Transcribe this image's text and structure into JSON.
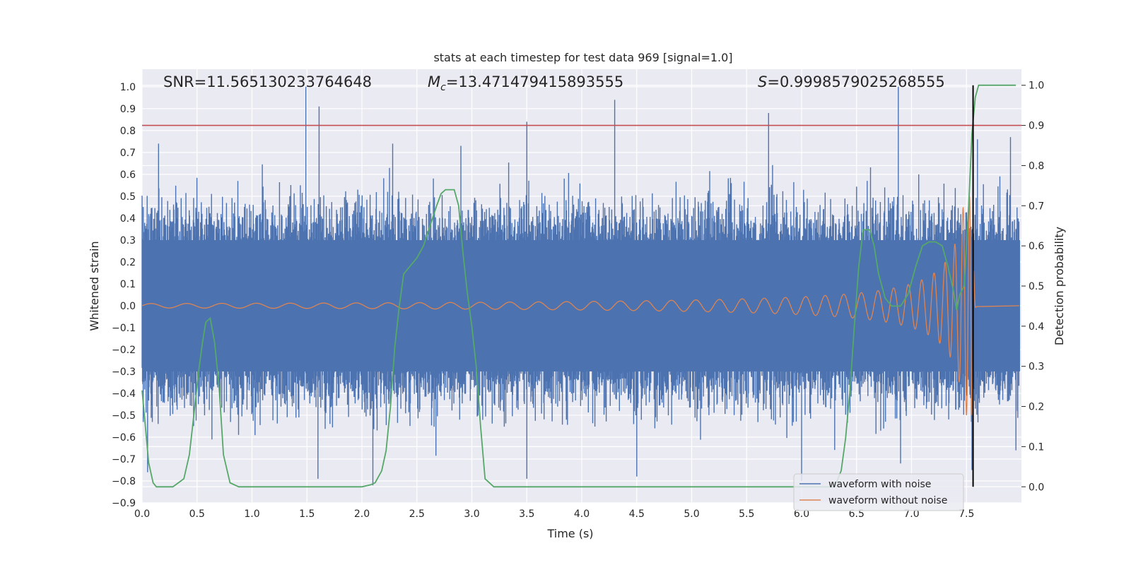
{
  "chart_data": {
    "type": "line",
    "title": "stats at each timestep for test data 969 [signal=1.0]",
    "xlabel": "Time (s)",
    "ylabel": "Whitened strain",
    "y2label": "Detection probability",
    "xlim": [
      0.0,
      8.0
    ],
    "ylim": [
      -0.9,
      1.08
    ],
    "y2lim": [
      -0.04,
      1.04
    ],
    "xticks": [
      "0.0",
      "0.5",
      "1.0",
      "1.5",
      "2.0",
      "2.5",
      "3.0",
      "3.5",
      "4.0",
      "4.5",
      "5.0",
      "5.5",
      "6.0",
      "6.5",
      "7.0",
      "7.5"
    ],
    "yticks": [
      "1.0",
      "0.9",
      "0.8",
      "0.7",
      "0.6",
      "0.5",
      "0.4",
      "0.3",
      "0.2",
      "0.1",
      "0.0",
      "−0.1",
      "−0.2",
      "−0.3",
      "−0.4",
      "−0.5",
      "−0.6",
      "−0.7",
      "−0.8",
      "−0.9"
    ],
    "y2ticks": [
      "1.0",
      "0.9",
      "0.8",
      "0.7",
      "0.6",
      "0.5",
      "0.4",
      "0.3",
      "0.2",
      "0.1",
      "0.0"
    ],
    "grid": true,
    "legend_position": "lower-right",
    "annotations": {
      "snr_label": "SNR=11.565130233764648",
      "mc_label": "=13.471479415893555",
      "mc_symbol": "M",
      "mc_subscript": "c",
      "s_symbol": "S",
      "s_label": "=0.9998579025268555"
    },
    "threshold": {
      "value": 0.9,
      "axis": "right",
      "color": "#c44e52"
    },
    "marker_line": {
      "x": 7.56,
      "y_from": 0.0,
      "y_to": 1.0,
      "axis": "right",
      "color": "#000000"
    },
    "series": [
      {
        "name": "waveform with noise",
        "color": "#4c72b0",
        "axis": "left",
        "peaks": [
          [
            1.49,
            1.0
          ],
          [
            1.61,
            0.91
          ],
          [
            3.5,
            0.84
          ],
          [
            4.3,
            0.94
          ],
          [
            5.7,
            0.88
          ],
          [
            6.88,
            1.0
          ],
          [
            0.15,
            0.74
          ],
          [
            2.28,
            0.74
          ],
          [
            2.9,
            0.73
          ],
          [
            7.6,
            0.76
          ],
          [
            7.9,
            0.77
          ]
        ],
        "troughs": [
          [
            0.05,
            -0.76
          ],
          [
            1.6,
            -0.79
          ],
          [
            2.1,
            -0.82
          ],
          [
            3.5,
            -0.79
          ],
          [
            4.5,
            -0.78
          ],
          [
            6.0,
            -0.8
          ],
          [
            6.9,
            -0.72
          ],
          [
            7.55,
            -0.75
          ],
          [
            7.95,
            -0.66
          ]
        ],
        "envelope": 0.55
      },
      {
        "name": "waveform without noise",
        "color": "#dd8452",
        "axis": "left",
        "merger_time": 7.56,
        "amplitude_start": 0.01,
        "amplitude_peak": 0.5
      },
      {
        "name": "",
        "color": "#55a868",
        "axis": "right",
        "x": [
          0.0,
          0.03,
          0.06,
          0.1,
          0.13,
          0.18,
          0.22,
          0.28,
          0.33,
          0.38,
          0.43,
          0.48,
          0.52,
          0.55,
          0.58,
          0.62,
          0.66,
          0.7,
          0.74,
          0.8,
          0.88,
          1.0,
          1.5,
          2.0,
          2.08,
          2.12,
          2.18,
          2.22,
          2.26,
          2.3,
          2.34,
          2.38,
          2.44,
          2.5,
          2.56,
          2.62,
          2.68,
          2.72,
          2.76,
          2.8,
          2.84,
          2.88,
          2.92,
          2.96,
          3.0,
          3.04,
          3.08,
          3.12,
          3.2,
          3.5,
          6.0,
          6.3,
          6.36,
          6.4,
          6.44,
          6.48,
          6.52,
          6.56,
          6.62,
          6.66,
          6.7,
          6.76,
          6.82,
          6.9,
          6.97,
          7.04,
          7.1,
          7.16,
          7.22,
          7.28,
          7.33,
          7.38,
          7.41,
          7.44,
          7.48,
          7.52,
          7.55,
          7.58,
          7.61,
          7.65,
          7.7,
          7.8,
          7.95
        ],
        "y": [
          0.24,
          0.15,
          0.06,
          0.01,
          0.0,
          0.0,
          0.0,
          0.0,
          0.01,
          0.02,
          0.08,
          0.2,
          0.3,
          0.36,
          0.41,
          0.42,
          0.36,
          0.25,
          0.08,
          0.01,
          0.0,
          0.0,
          0.0,
          0.0,
          0.005,
          0.01,
          0.04,
          0.09,
          0.2,
          0.35,
          0.45,
          0.53,
          0.55,
          0.57,
          0.6,
          0.65,
          0.7,
          0.73,
          0.74,
          0.74,
          0.74,
          0.7,
          0.58,
          0.48,
          0.4,
          0.3,
          0.15,
          0.02,
          0.0,
          0.0,
          0.0,
          0.0,
          0.04,
          0.12,
          0.24,
          0.4,
          0.55,
          0.64,
          0.64,
          0.6,
          0.53,
          0.47,
          0.45,
          0.45,
          0.48,
          0.55,
          0.6,
          0.61,
          0.61,
          0.6,
          0.55,
          0.49,
          0.44,
          0.48,
          0.5,
          0.7,
          0.88,
          0.97,
          1.0,
          1.0,
          1.0,
          1.0,
          1.0
        ]
      }
    ]
  }
}
